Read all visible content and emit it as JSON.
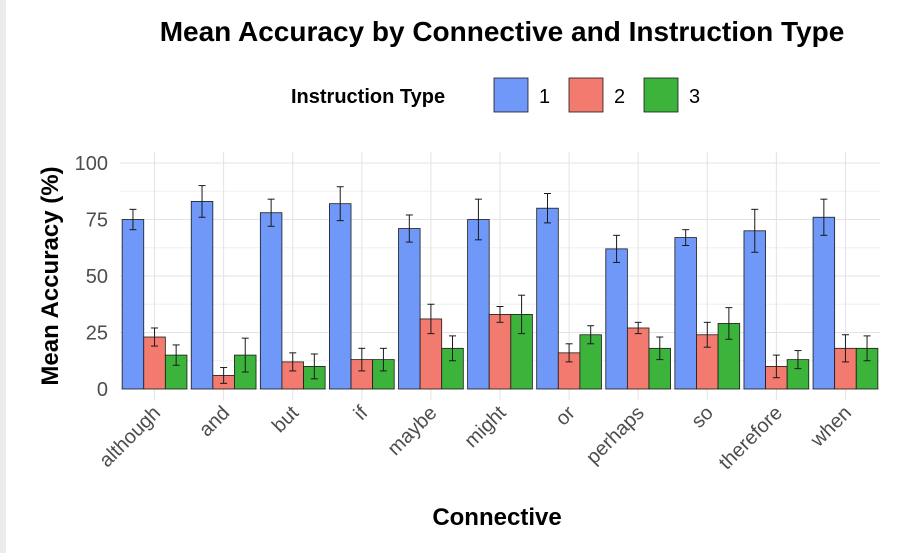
{
  "chart_data": {
    "type": "bar",
    "title": "Mean Accuracy by Connective and Instruction Type",
    "xlabel": "Connective",
    "ylabel": "Mean Accuracy (%)",
    "ylim": [
      0,
      105
    ],
    "yticks": [
      0,
      25,
      50,
      75,
      100
    ],
    "grid": true,
    "legend": {
      "title": "Instruction Type",
      "position": "top"
    },
    "categories": [
      "although",
      "and",
      "but",
      "if",
      "maybe",
      "might",
      "or",
      "perhaps",
      "so",
      "therefore",
      "when"
    ],
    "series": [
      {
        "name": "1",
        "color": "#6f98f8",
        "values": [
          75,
          83,
          78,
          82,
          71,
          75,
          80,
          62,
          67,
          70,
          76
        ],
        "errors": [
          4.5,
          7,
          6,
          7.5,
          6,
          9,
          6.5,
          6,
          3.5,
          9.5,
          8
        ]
      },
      {
        "name": "2",
        "color": "#f27a6e",
        "values": [
          23,
          6,
          12,
          13,
          31,
          33,
          16,
          27,
          24,
          10,
          18
        ],
        "errors": [
          4,
          3.5,
          4,
          5,
          6.5,
          3.5,
          4,
          2.5,
          5.5,
          5,
          6
        ]
      },
      {
        "name": "3",
        "color": "#3cb43c",
        "values": [
          15,
          15,
          10,
          13,
          18,
          33,
          24,
          18,
          29,
          13,
          18
        ],
        "errors": [
          4.5,
          7.5,
          5.5,
          5,
          5.5,
          8.5,
          4,
          5,
          7,
          4,
          5.5
        ]
      }
    ]
  }
}
